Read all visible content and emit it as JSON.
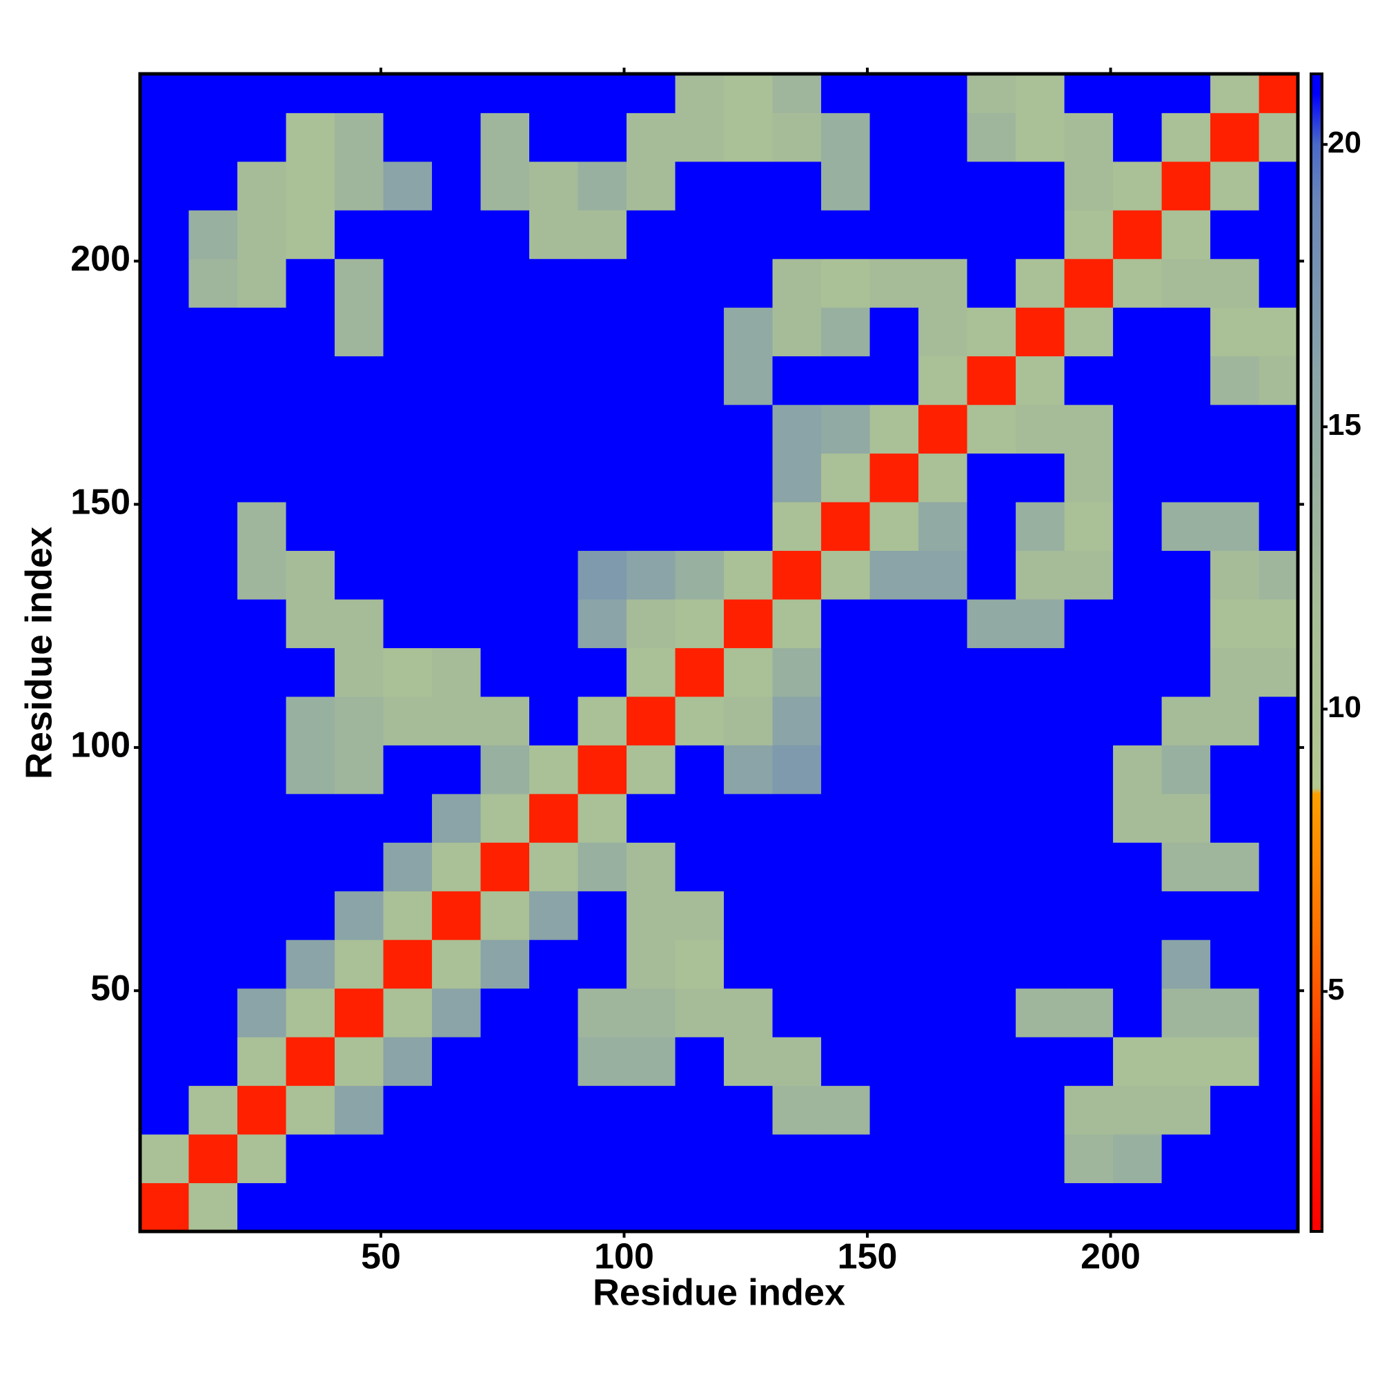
{
  "chart_data": {
    "type": "heatmap",
    "x_label": "Residue index",
    "y_label": "Residue index",
    "xlim": [
      0.5,
      238.5
    ],
    "ylim": [
      0.5,
      238.5
    ],
    "xticks": [
      50,
      100,
      150,
      200
    ],
    "yticks": [
      50,
      100,
      150,
      200
    ],
    "xbins": [
      0.5,
      10.5,
      20.5,
      30.5,
      40.5,
      50.5,
      60.5,
      70.5,
      80.5,
      90.5,
      100.5,
      110.5,
      120.5,
      130.5,
      140.5,
      150.5,
      160.5,
      170.5,
      180.5,
      190.5,
      200.5,
      210.5,
      220.5,
      230.5,
      238.5
    ],
    "ybins": [
      0.5,
      10.5,
      20.5,
      30.5,
      40.5,
      50.5,
      60.5,
      70.5,
      80.5,
      90.5,
      100.5,
      110.5,
      120.5,
      130.5,
      140.5,
      150.5,
      160.5,
      170.5,
      180.5,
      190.5,
      200.5,
      210.5,
      220.5,
      230.5,
      238.5
    ],
    "colorbar": {
      "lim": [
        0.75,
        21.25
      ],
      "ticks": [
        5,
        10,
        15,
        20
      ],
      "colorscale": [
        [
          0.75,
          "#ff0000"
        ],
        [
          3,
          "#ff2000"
        ],
        [
          6,
          "#ff7000"
        ],
        [
          8.5,
          "#ffa000"
        ],
        [
          8.6,
          "#b4c890"
        ],
        [
          12,
          "#a6bc98"
        ],
        [
          16,
          "#8aa4a8"
        ],
        [
          19,
          "#6a86b8"
        ],
        [
          20,
          "#4a6ac8"
        ],
        [
          20.9,
          "#0000ff"
        ],
        [
          21.25,
          "#0000ff"
        ]
      ]
    },
    "values": [
      [
        3,
        11,
        21,
        21,
        21,
        21,
        21,
        21,
        21,
        21,
        21,
        21,
        21,
        21,
        21,
        21,
        21,
        21,
        21,
        21,
        21,
        21,
        21,
        21
      ],
      [
        11,
        3,
        11,
        21,
        21,
        21,
        21,
        21,
        21,
        21,
        21,
        21,
        21,
        21,
        21,
        21,
        21,
        21,
        21,
        13,
        14,
        21,
        21,
        21
      ],
      [
        21,
        11,
        3,
        11,
        16,
        21,
        21,
        21,
        21,
        21,
        21,
        21,
        21,
        13,
        13,
        21,
        21,
        21,
        21,
        12,
        12,
        12,
        21,
        21
      ],
      [
        21,
        21,
        11,
        3,
        11,
        16,
        21,
        21,
        21,
        14,
        14,
        21,
        12,
        12,
        21,
        21,
        21,
        21,
        21,
        21,
        11,
        11,
        11,
        21
      ],
      [
        21,
        21,
        16,
        11,
        3,
        11,
        16,
        21,
        21,
        13,
        13,
        12,
        12,
        21,
        21,
        21,
        21,
        21,
        13,
        13,
        21,
        13,
        13,
        21
      ],
      [
        21,
        21,
        21,
        16,
        11,
        3,
        11,
        16,
        21,
        21,
        12,
        11,
        21,
        21,
        21,
        21,
        21,
        21,
        21,
        21,
        21,
        16,
        21,
        21
      ],
      [
        21,
        21,
        21,
        21,
        16,
        11,
        3,
        11,
        16,
        21,
        12,
        12,
        21,
        21,
        21,
        21,
        21,
        21,
        21,
        21,
        21,
        21,
        21,
        21
      ],
      [
        21,
        21,
        21,
        21,
        21,
        16,
        11,
        3,
        11,
        14,
        12,
        21,
        21,
        21,
        21,
        21,
        21,
        21,
        21,
        21,
        21,
        13,
        13,
        21
      ],
      [
        21,
        21,
        21,
        21,
        21,
        21,
        16,
        11,
        3,
        11,
        21,
        21,
        21,
        21,
        21,
        21,
        21,
        21,
        21,
        21,
        12,
        12,
        21,
        21
      ],
      [
        21,
        21,
        21,
        14,
        13,
        21,
        21,
        14,
        11,
        3,
        11,
        21,
        16,
        17,
        21,
        21,
        21,
        21,
        21,
        21,
        12,
        14,
        21,
        21
      ],
      [
        21,
        21,
        21,
        14,
        13,
        12,
        12,
        12,
        21,
        11,
        3,
        11,
        12,
        16,
        21,
        21,
        21,
        21,
        21,
        21,
        21,
        12,
        12,
        21
      ],
      [
        21,
        21,
        21,
        21,
        12,
        11,
        12,
        21,
        21,
        21,
        11,
        3,
        11,
        14,
        21,
        21,
        21,
        21,
        21,
        21,
        21,
        21,
        12,
        12
      ],
      [
        21,
        21,
        21,
        12,
        12,
        21,
        21,
        21,
        21,
        16,
        12,
        11,
        3,
        11,
        21,
        21,
        21,
        15,
        15,
        21,
        21,
        21,
        11,
        11
      ],
      [
        21,
        21,
        13,
        12,
        21,
        21,
        21,
        21,
        21,
        17,
        16,
        14,
        11,
        3,
        11,
        16,
        16,
        21,
        12,
        12,
        21,
        21,
        12,
        13
      ],
      [
        21,
        21,
        13,
        21,
        21,
        21,
        21,
        21,
        21,
        21,
        21,
        21,
        21,
        11,
        3,
        11,
        15,
        21,
        14,
        11,
        21,
        14,
        14,
        21
      ],
      [
        21,
        21,
        21,
        21,
        21,
        21,
        21,
        21,
        21,
        21,
        21,
        21,
        21,
        16,
        11,
        3,
        11,
        21,
        21,
        12,
        21,
        21,
        21,
        21
      ],
      [
        21,
        21,
        21,
        21,
        21,
        21,
        21,
        21,
        21,
        21,
        21,
        21,
        21,
        16,
        15,
        11,
        3,
        11,
        12,
        12,
        21,
        21,
        21,
        21
      ],
      [
        21,
        21,
        21,
        21,
        21,
        21,
        21,
        21,
        21,
        21,
        21,
        21,
        15,
        21,
        21,
        21,
        11,
        3,
        11,
        21,
        21,
        21,
        13,
        12
      ],
      [
        21,
        21,
        21,
        21,
        13,
        21,
        21,
        21,
        21,
        21,
        21,
        21,
        15,
        12,
        14,
        21,
        12,
        11,
        3,
        11,
        21,
        21,
        11,
        11
      ],
      [
        21,
        13,
        12,
        21,
        13,
        21,
        21,
        21,
        21,
        21,
        21,
        21,
        21,
        12,
        11,
        12,
        12,
        21,
        11,
        3,
        11,
        12,
        12,
        21
      ],
      [
        21,
        14,
        12,
        11,
        21,
        21,
        21,
        21,
        12,
        12,
        21,
        21,
        21,
        21,
        21,
        21,
        21,
        21,
        21,
        11,
        3,
        11,
        21,
        21
      ],
      [
        21,
        21,
        12,
        11,
        13,
        16,
        21,
        13,
        12,
        14,
        12,
        21,
        21,
        21,
        14,
        21,
        21,
        21,
        21,
        12,
        11,
        3,
        11,
        21
      ],
      [
        21,
        21,
        21,
        11,
        13,
        21,
        21,
        13,
        21,
        21,
        12,
        12,
        11,
        12,
        14,
        21,
        21,
        13,
        11,
        12,
        21,
        11,
        3,
        11
      ],
      [
        21,
        21,
        21,
        21,
        21,
        21,
        21,
        21,
        21,
        21,
        21,
        12,
        11,
        13,
        21,
        21,
        21,
        12,
        11,
        21,
        21,
        21,
        11,
        3
      ]
    ]
  }
}
